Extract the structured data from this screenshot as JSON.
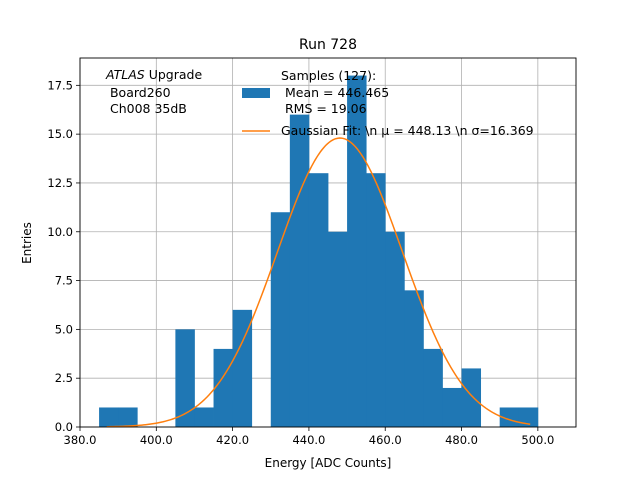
{
  "chart_data": {
    "type": "bar",
    "title": "Run 728",
    "xlabel": "Energy [ADC Counts]",
    "ylabel": "Entries",
    "xlim": [
      380,
      510
    ],
    "ylim": [
      0,
      18.9
    ],
    "grid": true,
    "xticks": [
      380,
      400,
      420,
      440,
      460,
      480,
      500
    ],
    "xtick_labels": [
      "380.0",
      "400.0",
      "420.0",
      "440.0",
      "460.0",
      "480.0",
      "500.0"
    ],
    "yticks": [
      0,
      2.5,
      5,
      7.5,
      10,
      12.5,
      15,
      17.5
    ],
    "ytick_labels": [
      "0.0",
      "2.5",
      "5.0",
      "7.5",
      "10.0",
      "12.5",
      "15.0",
      "17.5"
    ],
    "annotation": {
      "line1_italic": "ATLAS",
      "line1_rest": " Upgrade",
      "line2": " Board260",
      "line3": " Ch008 35dB"
    },
    "legend": {
      "placement": "top-right",
      "hist_label_lines": [
        "Samples (127):",
        " Mean = 446.465",
        " RMS = 19.06"
      ],
      "fit_label": "Gaussian Fit: \\n μ = 448.13 \\n σ=16.369"
    },
    "histogram": {
      "color": "#1f77b4",
      "bins": [
        {
          "x0": 385,
          "x1": 390,
          "count": 1
        },
        {
          "x0": 390,
          "x1": 395,
          "count": 1
        },
        {
          "x0": 405,
          "x1": 410,
          "count": 5
        },
        {
          "x0": 410,
          "x1": 415,
          "count": 1
        },
        {
          "x0": 415,
          "x1": 420,
          "count": 4
        },
        {
          "x0": 420,
          "x1": 425,
          "count": 6
        },
        {
          "x0": 430,
          "x1": 435,
          "count": 11
        },
        {
          "x0": 435,
          "x1": 440,
          "count": 16
        },
        {
          "x0": 440,
          "x1": 445,
          "count": 13
        },
        {
          "x0": 445,
          "x1": 450,
          "count": 10
        },
        {
          "x0": 450,
          "x1": 455,
          "count": 18
        },
        {
          "x0": 455,
          "x1": 460,
          "count": 13
        },
        {
          "x0": 460,
          "x1": 465,
          "count": 10
        },
        {
          "x0": 465,
          "x1": 470,
          "count": 7
        },
        {
          "x0": 470,
          "x1": 475,
          "count": 4
        },
        {
          "x0": 475,
          "x1": 480,
          "count": 2
        },
        {
          "x0": 480,
          "x1": 485,
          "count": 3
        },
        {
          "x0": 490,
          "x1": 495,
          "count": 1
        },
        {
          "x0": 495,
          "x1": 500,
          "count": 1
        }
      ]
    },
    "fit": {
      "color": "#ff7f0e",
      "mu": 448.13,
      "sigma": 16.369,
      "amplitude": 14.8,
      "x_range": [
        387,
        498
      ]
    }
  }
}
